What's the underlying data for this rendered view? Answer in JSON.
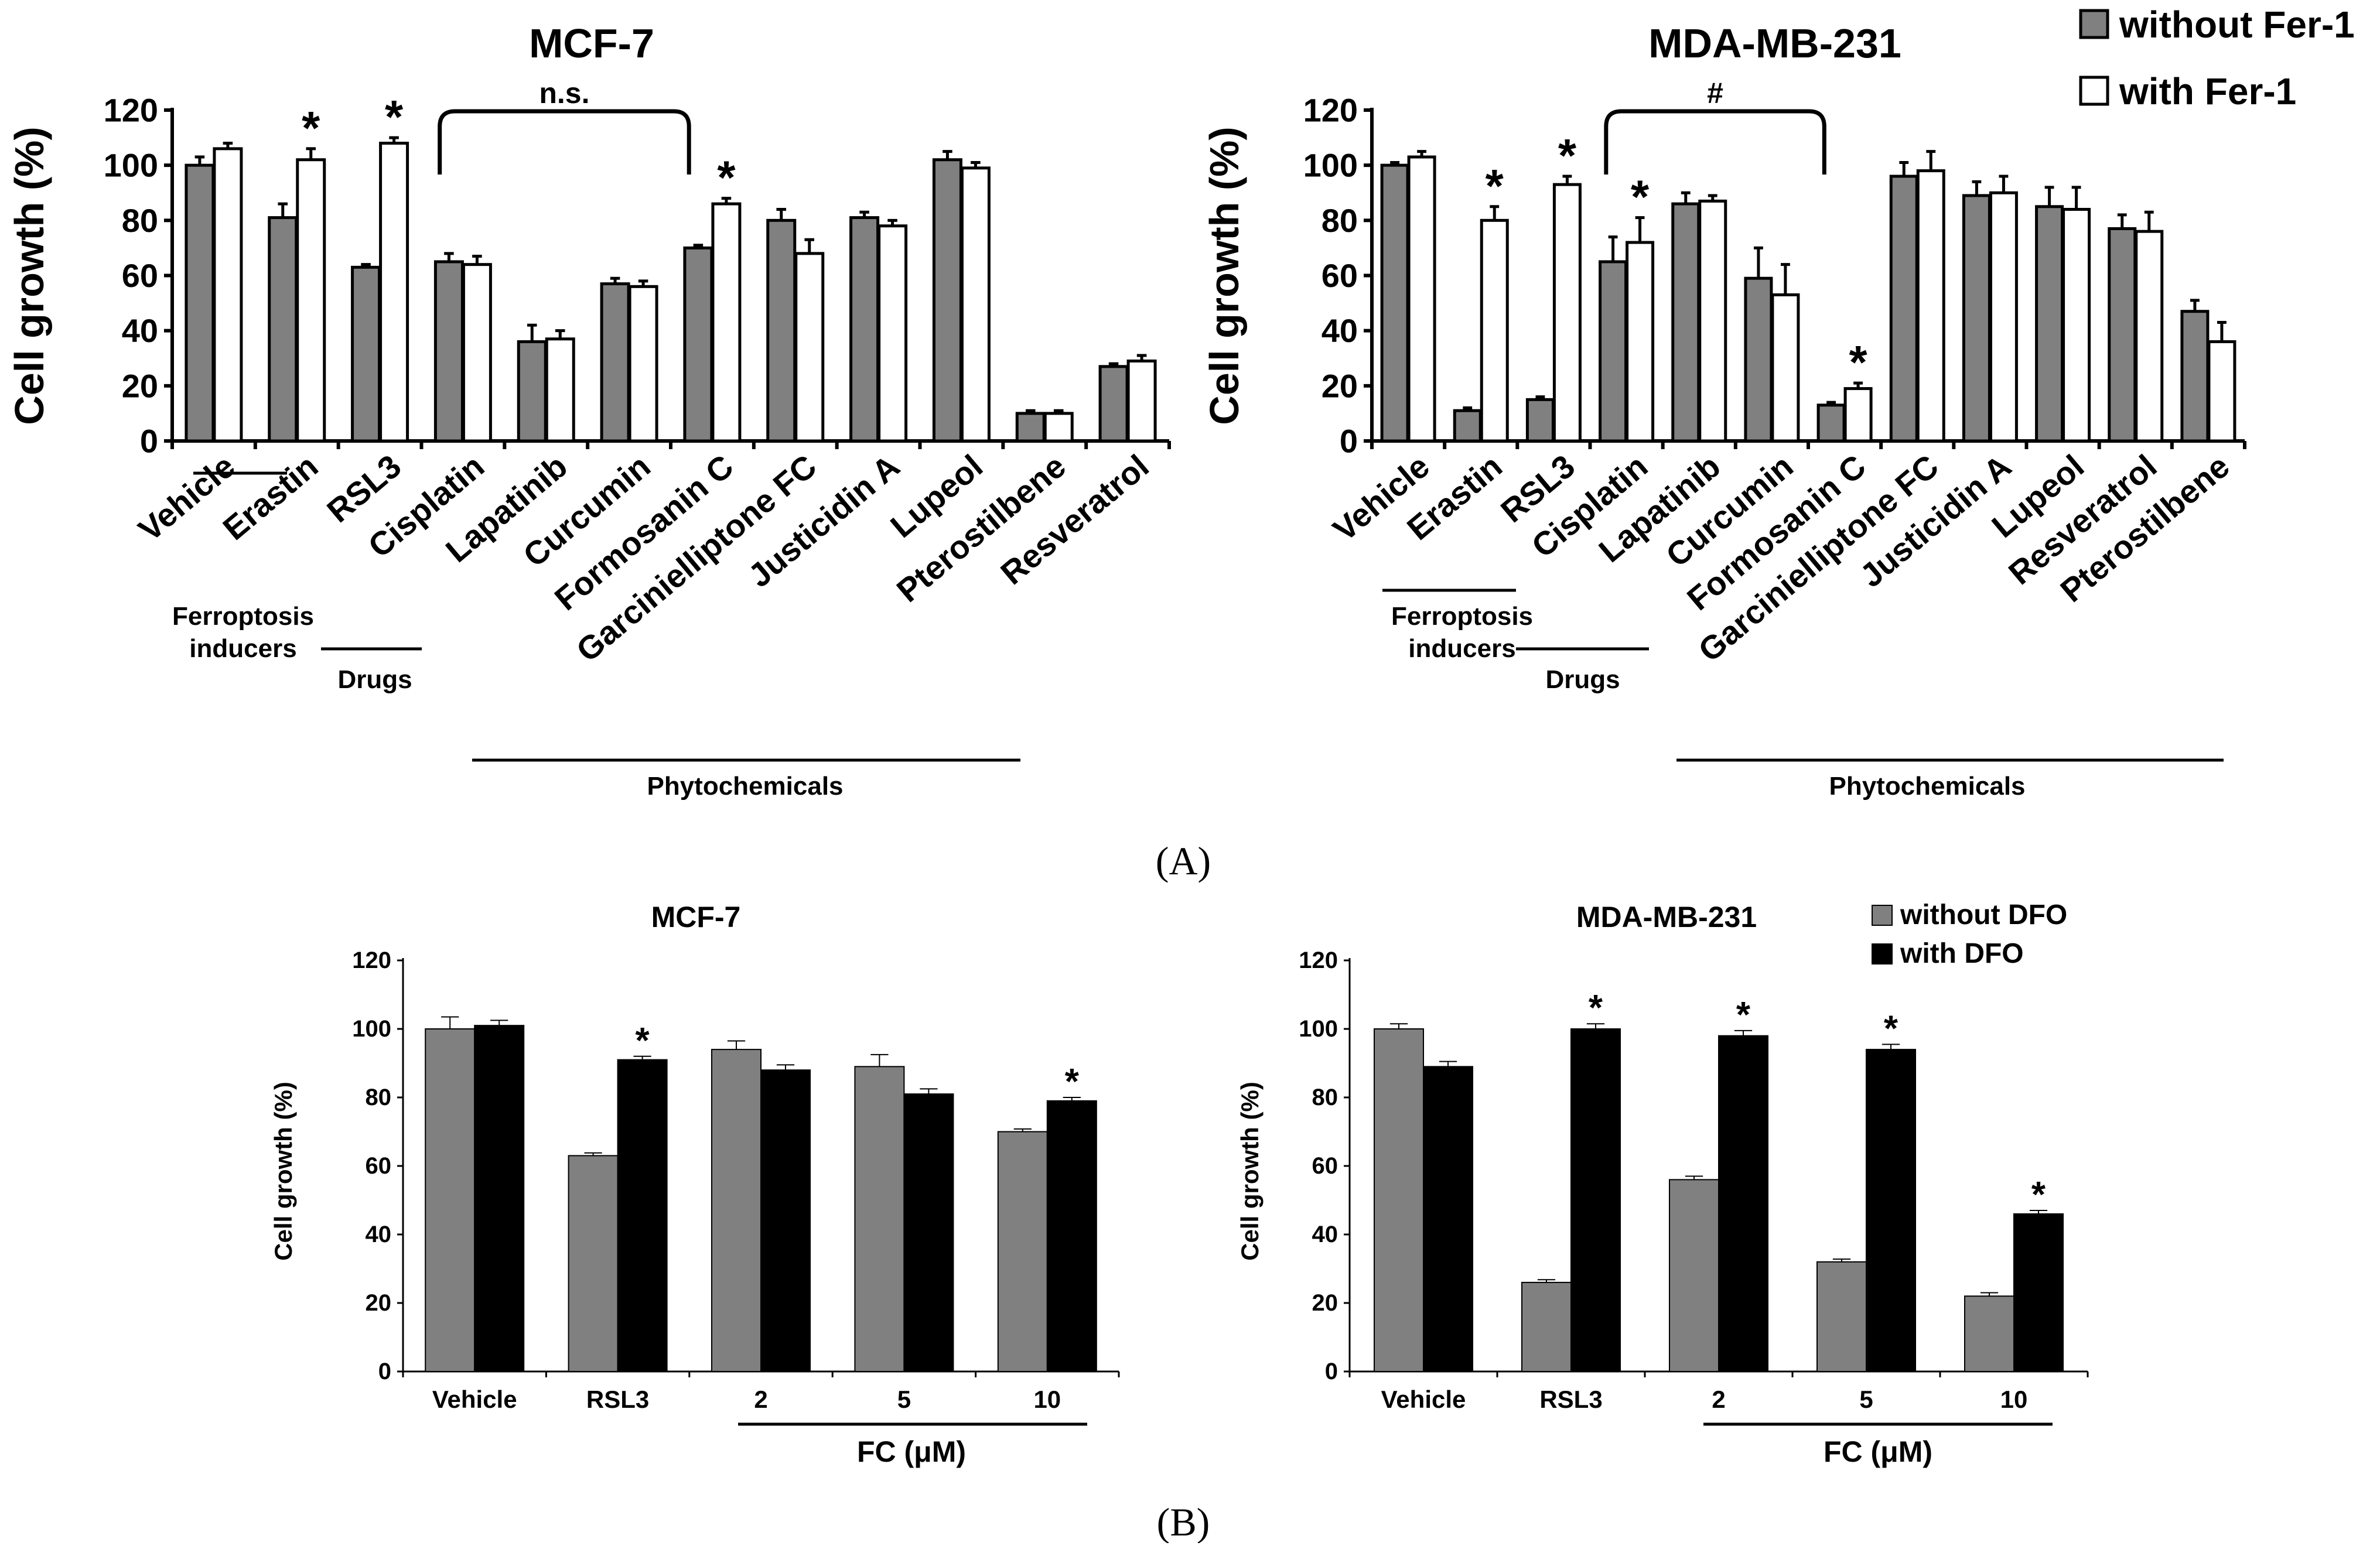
{
  "panels": {
    "a_label": "(A)",
    "b_label": "(B)"
  },
  "legend_a": {
    "items": [
      {
        "label": "without Fer-1",
        "color": "#808080"
      },
      {
        "label": "with Fer-1",
        "color": "#ffffff"
      }
    ]
  },
  "legend_b": {
    "items": [
      {
        "label": "without DFO",
        "color": "#808080"
      },
      {
        "label": "with DFO",
        "color": "#000000"
      }
    ]
  },
  "colors": {
    "without_a": "#808080",
    "with_a": "#ffffff",
    "without_b": "#808080",
    "with_b": "#000000",
    "axis": "#000000"
  },
  "chart_data": [
    {
      "id": "a1",
      "type": "bar",
      "title": "MCF-7",
      "ylabel": "Cell growth (%)",
      "xlabel": "",
      "ylim": [
        0,
        120
      ],
      "yticks": [
        0,
        20,
        40,
        60,
        80,
        100,
        120
      ],
      "categories": [
        "Vehicle",
        "Erastin",
        "RSL3",
        "Cisplatin",
        "Lapatinib",
        "Curcumin",
        "Formosanin C",
        "Garcinielliptone FC",
        "Justicidin A",
        "Lupeol",
        "Pterostilbene",
        "Resveratrol"
      ],
      "series": [
        {
          "name": "without Fer-1",
          "values": [
            100,
            81,
            63,
            65,
            36,
            57,
            70,
            80,
            81,
            102,
            10,
            27
          ],
          "errors": [
            3,
            5,
            1,
            3,
            6,
            2,
            1,
            4,
            2,
            3,
            1,
            1
          ]
        },
        {
          "name": "with Fer-1",
          "values": [
            106,
            102,
            108,
            64,
            37,
            56,
            86,
            68,
            78,
            99,
            10,
            29
          ],
          "errors": [
            2,
            4,
            2,
            3,
            3,
            2,
            2,
            5,
            2,
            2,
            1,
            2
          ]
        }
      ],
      "significance": [
        {
          "category": "Erastin",
          "series": "with Fer-1",
          "mark": "*"
        },
        {
          "category": "RSL3",
          "series": "with Fer-1",
          "mark": "*"
        },
        {
          "category": "Formosanin C",
          "series": "with Fer-1",
          "mark": "*"
        }
      ],
      "bracket": {
        "from": "Cisplatin",
        "to": "Formosanin C",
        "label": "n.s."
      },
      "groups": [
        {
          "label": [
            "Ferroptosis",
            "inducers"
          ],
          "from": "Erastin",
          "to": "RSL3"
        },
        {
          "label": [
            "Drugs"
          ],
          "from": "RSL3",
          "to": "Cisplatin"
        },
        {
          "label": [
            "Phytochemicals"
          ],
          "from": "Lapatinib",
          "to": "Resveratrol"
        }
      ]
    },
    {
      "id": "a2",
      "type": "bar",
      "title": "MDA-MB-231",
      "ylabel": "Cell growth (%)",
      "xlabel": "",
      "ylim": [
        0,
        120
      ],
      "yticks": [
        0,
        20,
        40,
        60,
        80,
        100,
        120
      ],
      "categories": [
        "Vehicle",
        "Erastin",
        "RSL3",
        "Cisplatin",
        "Lapatinib",
        "Curcumin",
        "Formosanin C",
        "Garcinielliptone FC",
        "Justicidin A",
        "Lupeol",
        "Resveratrol",
        "Pterostilbene"
      ],
      "series": [
        {
          "name": "without Fer-1",
          "values": [
            100,
            11,
            15,
            65,
            86,
            59,
            13,
            96,
            89,
            85,
            77,
            47
          ],
          "errors": [
            1,
            1,
            1,
            9,
            4,
            11,
            1,
            5,
            5,
            7,
            5,
            4
          ]
        },
        {
          "name": "with Fer-1",
          "values": [
            103,
            80,
            93,
            72,
            87,
            53,
            19,
            98,
            90,
            84,
            76,
            36
          ],
          "errors": [
            2,
            5,
            3,
            9,
            2,
            11,
            2,
            7,
            6,
            8,
            7,
            7
          ]
        }
      ],
      "significance": [
        {
          "category": "Erastin",
          "series": "with Fer-1",
          "mark": "*"
        },
        {
          "category": "RSL3",
          "series": "with Fer-1",
          "mark": "*"
        },
        {
          "category": "Cisplatin",
          "series": "with Fer-1",
          "mark": "*"
        },
        {
          "category": "Formosanin C",
          "series": "with Fer-1",
          "mark": "*"
        }
      ],
      "bracket": {
        "from": "Cisplatin",
        "to": "Formosanin C",
        "label": "#"
      },
      "groups": [
        {
          "label": [
            "Ferroptosis",
            "inducers"
          ],
          "from": "Erastin",
          "to": "RSL3"
        },
        {
          "label": [
            "Drugs"
          ],
          "from": "RSL3",
          "to": "Cisplatin"
        },
        {
          "label": [
            "Phytochemicals"
          ],
          "from": "Lapatinib",
          "to": "Pterostilbene"
        }
      ]
    },
    {
      "id": "b1",
      "type": "bar",
      "title": "MCF-7",
      "ylabel": "Cell growth (%)",
      "xlabel": "",
      "ylim": [
        0,
        120
      ],
      "yticks": [
        0,
        20,
        40,
        60,
        80,
        100,
        120
      ],
      "categories": [
        "Vehicle",
        "RSL3",
        "2",
        "5",
        "10"
      ],
      "series": [
        {
          "name": "without DFO",
          "values": [
            100,
            63,
            94,
            89,
            70
          ],
          "errors": [
            3.5,
            0.8,
            2.5,
            3.5,
            0.8
          ]
        },
        {
          "name": "with DFO",
          "values": [
            101,
            91,
            88,
            81,
            79
          ],
          "errors": [
            1.5,
            1,
            1.5,
            1.5,
            1
          ]
        }
      ],
      "significance": [
        {
          "category": "RSL3",
          "series": "with DFO",
          "mark": "*"
        },
        {
          "category": "10",
          "series": "with DFO",
          "mark": "*"
        }
      ],
      "groups": [
        {
          "label": [
            "FC (μM)"
          ],
          "from": "2",
          "to": "10"
        }
      ]
    },
    {
      "id": "b2",
      "type": "bar",
      "title": "MDA-MB-231",
      "ylabel": "Cell growth (%)",
      "xlabel": "",
      "ylim": [
        0,
        120
      ],
      "yticks": [
        0,
        20,
        40,
        60,
        80,
        100,
        120
      ],
      "categories": [
        "Vehicle",
        "RSL3",
        "2",
        "5",
        "10"
      ],
      "series": [
        {
          "name": "without DFO",
          "values": [
            100,
            26,
            56,
            32,
            22
          ],
          "errors": [
            1.5,
            0.8,
            1,
            0.8,
            1
          ]
        },
        {
          "name": "with DFO",
          "values": [
            89,
            100,
            98,
            94,
            46
          ],
          "errors": [
            1.5,
            1.5,
            1.5,
            1.5,
            1
          ]
        }
      ],
      "significance": [
        {
          "category": "RSL3",
          "series": "with DFO",
          "mark": "*"
        },
        {
          "category": "2",
          "series": "with DFO",
          "mark": "*"
        },
        {
          "category": "5",
          "series": "with DFO",
          "mark": "*"
        },
        {
          "category": "10",
          "series": "with DFO",
          "mark": "*"
        }
      ],
      "groups": [
        {
          "label": [
            "FC (μM)"
          ],
          "from": "2",
          "to": "10"
        }
      ]
    }
  ]
}
